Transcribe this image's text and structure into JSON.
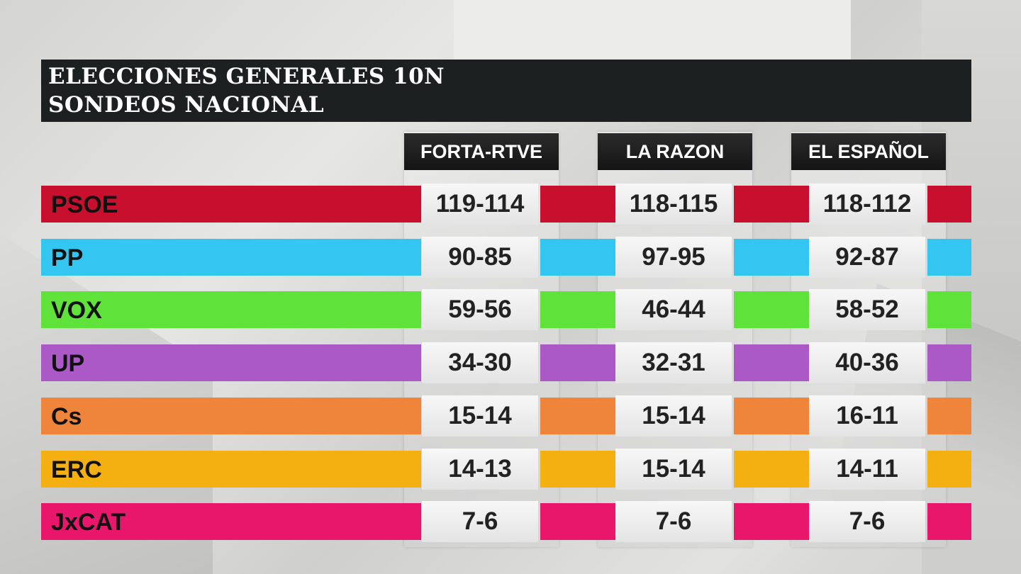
{
  "title": {
    "line1": "ELECCIONES GENERALES 10N",
    "line2": "SONDEOS NACIONAL"
  },
  "sources": [
    "FORTA-RTVE",
    "LA RAZON",
    "EL ESPAÑOL"
  ],
  "parties": [
    {
      "name": "PSOE",
      "color": "#c8102e",
      "values": [
        "119-114",
        "118-115",
        "118-112"
      ]
    },
    {
      "name": "PP",
      "color": "#33c6f0",
      "values": [
        "90-85",
        "97-95",
        "92-87"
      ]
    },
    {
      "name": "VOX",
      "color": "#5fe33a",
      "values": [
        "59-56",
        "46-44",
        "58-52"
      ]
    },
    {
      "name": "UP",
      "color": "#ab59c7",
      "values": [
        "34-30",
        "32-31",
        "40-36"
      ]
    },
    {
      "name": "Cs",
      "color": "#ef853a",
      "values": [
        "15-14",
        "15-14",
        "16-11"
      ]
    },
    {
      "name": "ERC",
      "color": "#f4b010",
      "values": [
        "14-13",
        "15-14",
        "14-11"
      ]
    },
    {
      "name": "JxCAT",
      "color": "#e8176c",
      "values": [
        "7-6",
        "7-6",
        "7-6"
      ]
    }
  ]
}
